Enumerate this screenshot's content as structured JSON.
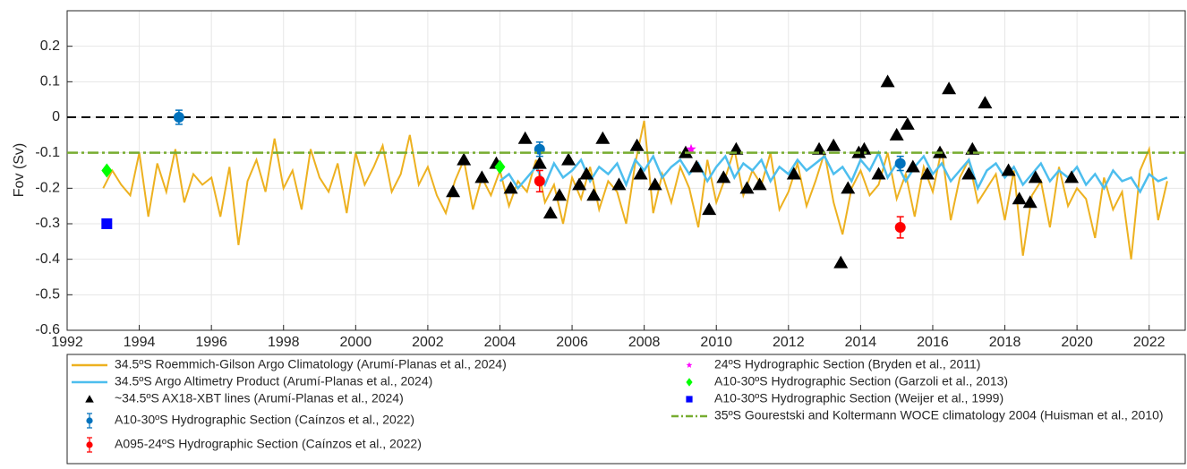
{
  "chart_data": {
    "type": "line",
    "ylabel": "Fov (Sv)",
    "xlim": [
      1992,
      2023
    ],
    "xticks": [
      1992,
      1994,
      1996,
      1998,
      2000,
      2002,
      2004,
      2006,
      2008,
      2010,
      2012,
      2014,
      2016,
      2018,
      2020,
      2022
    ],
    "ylim": [
      -0.6,
      0.3
    ],
    "yticks": [
      -0.6,
      -0.5,
      -0.4,
      -0.3,
      -0.2,
      -0.1,
      0,
      0.1,
      0.2
    ],
    "grid": true,
    "reference_line": {
      "value": 0,
      "color": "#000000"
    },
    "series": [
      {
        "name": "34.5ºS Roemmich-Gilson Argo Climatology (Arumí-Planas et al., 2024)",
        "color": "#edb120",
        "marker": "line",
        "x": [
          1993,
          1993.25,
          1993.5,
          1993.75,
          1994,
          1994.25,
          1994.5,
          1994.75,
          1995,
          1995.25,
          1995.5,
          1995.75,
          1996,
          1996.25,
          1996.5,
          1996.75,
          1997,
          1997.25,
          1997.5,
          1997.75,
          1998,
          1998.25,
          1998.5,
          1998.75,
          1999,
          1999.25,
          1999.5,
          1999.75,
          2000,
          2000.25,
          2000.5,
          2000.75,
          2001,
          2001.25,
          2001.5,
          2001.75,
          2002,
          2002.25,
          2002.5,
          2002.75,
          2003,
          2003.25,
          2003.5,
          2003.75,
          2004,
          2004.25,
          2004.5,
          2004.75,
          2005,
          2005.25,
          2005.5,
          2005.75,
          2006,
          2006.25,
          2006.5,
          2006.75,
          2007,
          2007.25,
          2007.5,
          2007.75,
          2008,
          2008.25,
          2008.5,
          2008.75,
          2009,
          2009.25,
          2009.5,
          2009.75,
          2010,
          2010.25,
          2010.5,
          2010.75,
          2011,
          2011.25,
          2011.5,
          2011.75,
          2012,
          2012.25,
          2012.5,
          2012.75,
          2013,
          2013.25,
          2013.5,
          2013.75,
          2014,
          2014.25,
          2014.5,
          2014.75,
          2015,
          2015.25,
          2015.5,
          2015.75,
          2016,
          2016.25,
          2016.5,
          2016.75,
          2017,
          2017.25,
          2017.5,
          2017.75,
          2018,
          2018.25,
          2018.5,
          2018.75,
          2019,
          2019.25,
          2019.5,
          2019.75,
          2020,
          2020.25,
          2020.5,
          2020.75,
          2021,
          2021.25,
          2021.5,
          2021.75,
          2022,
          2022.25,
          2022.5
        ],
        "values": [
          -0.2,
          -0.15,
          -0.19,
          -0.22,
          -0.1,
          -0.28,
          -0.13,
          -0.21,
          -0.09,
          -0.24,
          -0.16,
          -0.19,
          -0.17,
          -0.28,
          -0.14,
          -0.36,
          -0.18,
          -0.12,
          -0.21,
          -0.06,
          -0.2,
          -0.15,
          -0.26,
          -0.09,
          -0.17,
          -0.21,
          -0.13,
          -0.27,
          -0.1,
          -0.19,
          -0.14,
          -0.08,
          -0.21,
          -0.16,
          -0.05,
          -0.19,
          -0.14,
          -0.22,
          -0.27,
          -0.18,
          -0.12,
          -0.26,
          -0.17,
          -0.22,
          -0.15,
          -0.25,
          -0.18,
          -0.21,
          -0.12,
          -0.24,
          -0.19,
          -0.3,
          -0.17,
          -0.23,
          -0.14,
          -0.26,
          -0.18,
          -0.21,
          -0.3,
          -0.13,
          -0.01,
          -0.27,
          -0.16,
          -0.24,
          -0.14,
          -0.2,
          -0.31,
          -0.12,
          -0.24,
          -0.17,
          -0.09,
          -0.22,
          -0.15,
          -0.19,
          -0.1,
          -0.26,
          -0.21,
          -0.13,
          -0.25,
          -0.18,
          -0.1,
          -0.24,
          -0.33,
          -0.2,
          -0.15,
          -0.22,
          -0.19,
          -0.1,
          -0.23,
          -0.16,
          -0.28,
          -0.14,
          -0.21,
          -0.09,
          -0.29,
          -0.17,
          -0.12,
          -0.24,
          -0.2,
          -0.16,
          -0.29,
          -0.15,
          -0.39,
          -0.22,
          -0.18,
          -0.31,
          -0.14,
          -0.25,
          -0.2,
          -0.23,
          -0.34,
          -0.17,
          -0.26,
          -0.21,
          -0.4,
          -0.15,
          -0.09,
          -0.29,
          -0.18
        ]
      },
      {
        "name": "34.5ºS Argo Altimetry Product (Arumí-Planas et al., 2024)",
        "color": "#4dbeee",
        "marker": "line",
        "x": [
          2004,
          2004.25,
          2004.5,
          2004.75,
          2005,
          2005.25,
          2005.5,
          2005.75,
          2006,
          2006.25,
          2006.5,
          2006.75,
          2007,
          2007.25,
          2007.5,
          2007.75,
          2008,
          2008.25,
          2008.5,
          2008.75,
          2009,
          2009.25,
          2009.5,
          2009.75,
          2010,
          2010.25,
          2010.5,
          2010.75,
          2011,
          2011.25,
          2011.5,
          2011.75,
          2012,
          2012.25,
          2012.5,
          2012.75,
          2013,
          2013.25,
          2013.5,
          2013.75,
          2014,
          2014.25,
          2014.5,
          2014.75,
          2015,
          2015.25,
          2015.5,
          2015.75,
          2016,
          2016.25,
          2016.5,
          2016.75,
          2017,
          2017.25,
          2017.5,
          2017.75,
          2018,
          2018.25,
          2018.5,
          2018.75,
          2019,
          2019.25,
          2019.5,
          2019.75,
          2020,
          2020.25,
          2020.5,
          2020.75,
          2021,
          2021.25,
          2021.5,
          2021.75,
          2022,
          2022.25,
          2022.5
        ],
        "values": [
          -0.18,
          -0.16,
          -0.2,
          -0.17,
          -0.14,
          -0.19,
          -0.13,
          -0.17,
          -0.15,
          -0.12,
          -0.18,
          -0.14,
          -0.16,
          -0.13,
          -0.19,
          -0.12,
          -0.15,
          -0.11,
          -0.17,
          -0.14,
          -0.12,
          -0.16,
          -0.13,
          -0.18,
          -0.14,
          -0.11,
          -0.17,
          -0.13,
          -0.15,
          -0.12,
          -0.18,
          -0.14,
          -0.16,
          -0.12,
          -0.15,
          -0.13,
          -0.11,
          -0.16,
          -0.14,
          -0.18,
          -0.12,
          -0.15,
          -0.1,
          -0.17,
          -0.13,
          -0.18,
          -0.14,
          -0.11,
          -0.16,
          -0.13,
          -0.18,
          -0.15,
          -0.12,
          -0.2,
          -0.15,
          -0.13,
          -0.17,
          -0.14,
          -0.19,
          -0.16,
          -0.13,
          -0.18,
          -0.15,
          -0.17,
          -0.14,
          -0.19,
          -0.16,
          -0.2,
          -0.15,
          -0.18,
          -0.17,
          -0.21,
          -0.16,
          -0.18,
          -0.17
        ]
      },
      {
        "name": "~34.5ºS AX18-XBT lines (Arumí-Planas et al., 2024)",
        "color": "#000000",
        "marker": "triangle",
        "x": [
          2002.7,
          2003.0,
          2003.5,
          2003.9,
          2004.3,
          2004.7,
          2005.1,
          2005.4,
          2005.65,
          2005.9,
          2006.2,
          2006.4,
          2006.6,
          2006.85,
          2007.3,
          2007.8,
          2007.9,
          2008.3,
          2009.15,
          2009.45,
          2009.8,
          2010.2,
          2010.55,
          2010.85,
          2011.2,
          2012.15,
          2012.85,
          2013.25,
          2013.45,
          2013.65,
          2013.95,
          2014.1,
          2014.5,
          2014.75,
          2015.0,
          2015.3,
          2015.45,
          2015.85,
          2016.2,
          2016.45,
          2017.0,
          2017.1,
          2017.45,
          2018.1,
          2018.4,
          2018.7,
          2018.85,
          2019.85
        ],
        "values": [
          -0.21,
          -0.12,
          -0.17,
          -0.13,
          -0.2,
          -0.06,
          -0.13,
          -0.27,
          -0.22,
          -0.12,
          -0.19,
          -0.16,
          -0.22,
          -0.06,
          -0.19,
          -0.08,
          -0.16,
          -0.19,
          -0.1,
          -0.14,
          -0.26,
          -0.17,
          -0.09,
          -0.2,
          -0.19,
          -0.16,
          -0.09,
          -0.08,
          -0.41,
          -0.2,
          -0.1,
          -0.09,
          -0.16,
          0.1,
          -0.05,
          -0.02,
          -0.14,
          -0.16,
          -0.1,
          0.08,
          -0.16,
          -0.09,
          0.04,
          -0.15,
          -0.23,
          -0.24,
          -0.17,
          -0.17
        ]
      },
      {
        "name": "A10-30ºS Hydrographic Section (Caínzos et al., 2022)",
        "color": "#0072bd",
        "marker": "circle",
        "x": [
          1995.1,
          2005.1,
          2015.1
        ],
        "values": [
          0.0,
          -0.09,
          -0.13
        ],
        "errors": [
          0.02,
          0.02,
          0.02
        ]
      },
      {
        "name": "A095-24ºS Hydrographic Section (Caínzos et al., 2022)",
        "color": "#ff0000",
        "marker": "circle",
        "x": [
          2005.1,
          2015.1
        ],
        "values": [
          -0.18,
          -0.31
        ],
        "errors": [
          0.03,
          0.03
        ]
      },
      {
        "name": "24ºS Hydrographic Section (Bryden et al., 2011)",
        "color": "#ff00ff",
        "marker": "star",
        "x": [
          2009.3
        ],
        "values": [
          -0.09
        ]
      },
      {
        "name": "A10-30ºS Hydrographic Section (Garzoli et al., 2013)",
        "color": "#00ff00",
        "marker": "diamond",
        "x": [
          1993.1,
          2004.0
        ],
        "values": [
          -0.15,
          -0.14
        ]
      },
      {
        "name": "A10-30ºS Hydrographic Section (Weijer et al., 1999)",
        "color": "#0000ff",
        "marker": "square",
        "x": [
          1993.1
        ],
        "values": [
          -0.3
        ]
      },
      {
        "name": "35ºS Gourestski and Koltermann WOCE climatology 2004 (Huisman et al., 2010)",
        "color": "#77ac30",
        "marker": "hline",
        "value": -0.1
      }
    ]
  }
}
